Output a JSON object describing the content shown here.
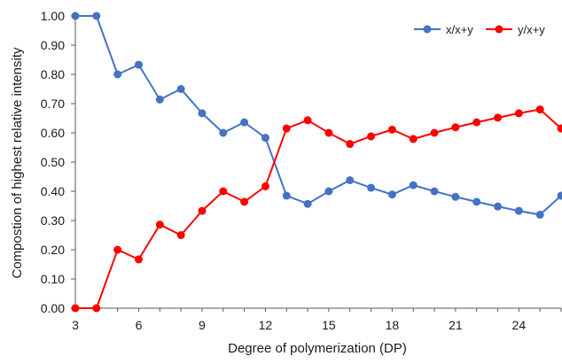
{
  "chart_data": {
    "type": "line",
    "xlabel": "Degree of polymerization (DP)",
    "ylabel": "Compostion of highest relative intensity",
    "xlim": [
      3,
      26
    ],
    "ylim": [
      0,
      1
    ],
    "x_ticks": [
      3,
      6,
      9,
      12,
      15,
      18,
      21,
      24
    ],
    "y_ticks": [
      "0.00",
      "0.10",
      "0.20",
      "0.30",
      "0.40",
      "0.50",
      "0.60",
      "0.70",
      "0.80",
      "0.90",
      "1.00"
    ],
    "grid": false,
    "legend_position": "top-right",
    "x": [
      3,
      4,
      5,
      6,
      7,
      8,
      9,
      10,
      11,
      12,
      13,
      14,
      15,
      16,
      17,
      18,
      19,
      20,
      21,
      22,
      23,
      24,
      25,
      26
    ],
    "series": [
      {
        "name": "x/x+y",
        "color": "#4472c4",
        "values": [
          1.0,
          1.0,
          0.8,
          0.833,
          0.714,
          0.75,
          0.667,
          0.6,
          0.636,
          0.583,
          0.385,
          0.357,
          0.4,
          0.438,
          0.412,
          0.389,
          0.421,
          0.4,
          0.381,
          0.364,
          0.348,
          0.333,
          0.32,
          0.385
        ]
      },
      {
        "name": "y/x+y",
        "color": "#ff0000",
        "values": [
          0.0,
          0.0,
          0.2,
          0.167,
          0.286,
          0.25,
          0.333,
          0.4,
          0.364,
          0.417,
          0.615,
          0.643,
          0.6,
          0.562,
          0.588,
          0.611,
          0.579,
          0.6,
          0.619,
          0.636,
          0.652,
          0.667,
          0.68,
          0.615
        ]
      }
    ]
  }
}
